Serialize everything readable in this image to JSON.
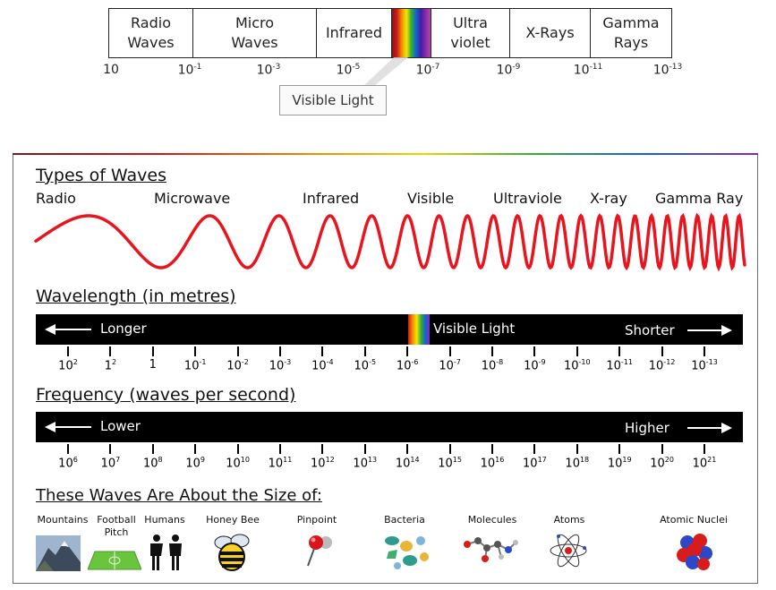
{
  "top_spectrum": {
    "cells": [
      "Radio\nWaves",
      "Micro\nWaves",
      "Infrared",
      "",
      "Ultra\nviolet",
      "X-Rays",
      "Gamma\nRays"
    ],
    "ticks": [
      {
        "base": "10",
        "exp": ""
      },
      {
        "base": "10",
        "exp": "-1"
      },
      {
        "base": "10",
        "exp": "-3"
      },
      {
        "base": "10",
        "exp": "-5"
      },
      {
        "base": "10",
        "exp": "-7"
      },
      {
        "base": "10",
        "exp": "-9"
      },
      {
        "base": "10",
        "exp": "-11"
      },
      {
        "base": "10",
        "exp": "-13"
      }
    ],
    "visible_callout": "Visible Light"
  },
  "types_of_waves": {
    "title": "Types of Waves",
    "labels": [
      "Radio",
      "Microwave",
      "Infrared",
      "Visible",
      "Ultraviole",
      "X-ray",
      "Gamma Ray"
    ],
    "wave_color": "#e8141e"
  },
  "wavelength": {
    "title": "Wavelength (in metres)",
    "left_label": "Longer",
    "right_label": "Shorter",
    "visible_label": "Visible Light",
    "ticks": [
      {
        "base": "10",
        "exp": "2"
      },
      {
        "base": "1",
        "exp": "2"
      },
      {
        "base": "1",
        "exp": ""
      },
      {
        "base": "10",
        "exp": "-1"
      },
      {
        "base": "10",
        "exp": "-2"
      },
      {
        "base": "10",
        "exp": "-3"
      },
      {
        "base": "10",
        "exp": "-4"
      },
      {
        "base": "10",
        "exp": "-5"
      },
      {
        "base": "10",
        "exp": "-6"
      },
      {
        "base": "10",
        "exp": "-7"
      },
      {
        "base": "10",
        "exp": "-8"
      },
      {
        "base": "10",
        "exp": "-9"
      },
      {
        "base": "10",
        "exp": "-10"
      },
      {
        "base": "10",
        "exp": "-11"
      },
      {
        "base": "10",
        "exp": "-12"
      },
      {
        "base": "10",
        "exp": "-13"
      }
    ]
  },
  "frequency": {
    "title": "Frequency (waves per second)",
    "left_label": "Lower",
    "right_label": "Higher",
    "ticks": [
      {
        "base": "10",
        "exp": "6"
      },
      {
        "base": "10",
        "exp": "7"
      },
      {
        "base": "10",
        "exp": "8"
      },
      {
        "base": "10",
        "exp": "9"
      },
      {
        "base": "10",
        "exp": "10"
      },
      {
        "base": "10",
        "exp": "11"
      },
      {
        "base": "10",
        "exp": "12"
      },
      {
        "base": "10",
        "exp": "13"
      },
      {
        "base": "10",
        "exp": "14"
      },
      {
        "base": "10",
        "exp": "15"
      },
      {
        "base": "10",
        "exp": "16"
      },
      {
        "base": "10",
        "exp": "17"
      },
      {
        "base": "10",
        "exp": "18"
      },
      {
        "base": "10",
        "exp": "19"
      },
      {
        "base": "10",
        "exp": "20"
      },
      {
        "base": "10",
        "exp": "21"
      }
    ]
  },
  "sizes": {
    "title": "These Waves Are About the Size of:",
    "items": [
      {
        "label": "Mountains",
        "icon": "mountain-icon"
      },
      {
        "label": "Football\nPitch",
        "icon": "football-pitch-icon"
      },
      {
        "label": "Humans",
        "icon": "humans-icon"
      },
      {
        "label": "Honey Bee",
        "icon": "bee-icon"
      },
      {
        "label": "Pinpoint",
        "icon": "pin-icon"
      },
      {
        "label": "Bacteria",
        "icon": "bacteria-icon"
      },
      {
        "label": "Molecules",
        "icon": "molecule-icon"
      },
      {
        "label": "Atoms",
        "icon": "atom-icon"
      },
      {
        "label": "Atomic Nuclei",
        "icon": "nucleus-icon"
      }
    ]
  }
}
